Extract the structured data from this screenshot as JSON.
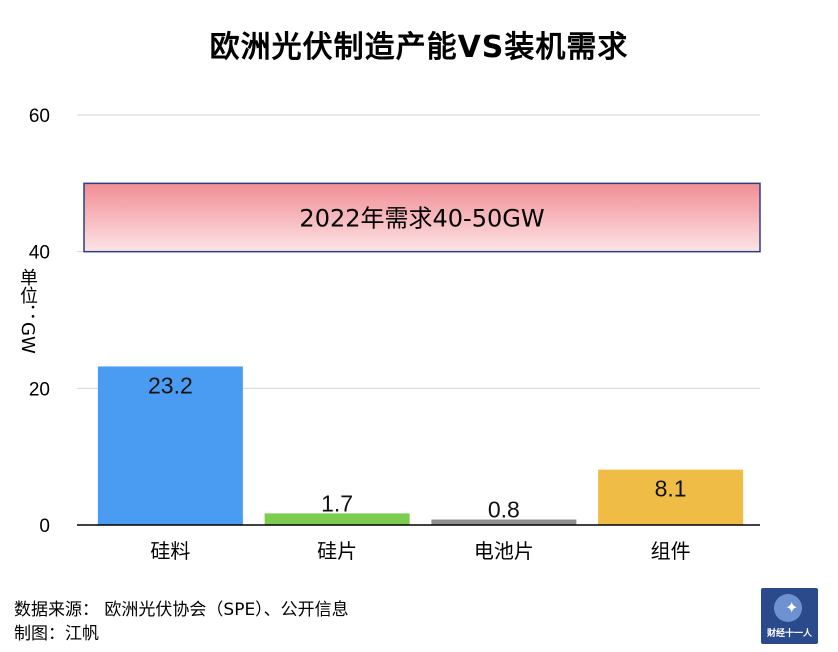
{
  "chart_data": {
    "type": "bar",
    "title": "欧洲光伏制造产能VS装机需求",
    "ylabel": "单位：GW",
    "ylim": [
      0,
      60
    ],
    "yticks": [
      0,
      20,
      40,
      60
    ],
    "categories": [
      "硅料",
      "硅片",
      "电池片",
      "组件"
    ],
    "values": [
      23.2,
      1.7,
      0.8,
      8.1
    ],
    "data_labels": [
      "23.2",
      "1.7",
      "0.8",
      "8.1"
    ],
    "colors": [
      "#4a9cf3",
      "#7ccd4f",
      "#8e8e8e",
      "#efbd45"
    ],
    "grid": true,
    "annotation": {
      "text": "2022年需求40-50GW",
      "y_range": [
        40,
        50
      ],
      "fill": "#f3a0a6",
      "border": "#2a3f86"
    }
  },
  "footer": {
    "source": "数据来源： 欧洲光伏协会（SPE）、公开信息",
    "maker": "制图：江帆"
  },
  "logo": {
    "text": "财经十一人",
    "icon": "globe-runner-icon"
  }
}
